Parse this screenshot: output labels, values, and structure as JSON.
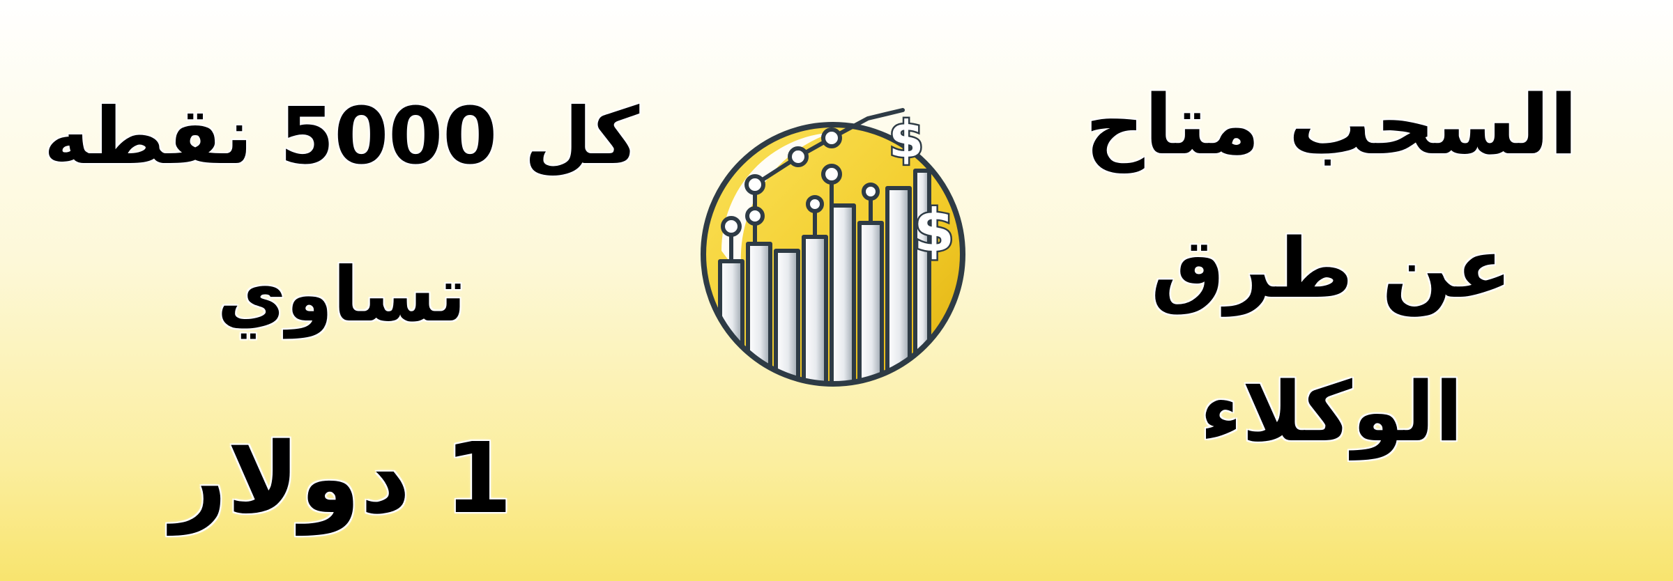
{
  "banner": {
    "right_lines": [
      "السحب متاح",
      "عن طرق",
      "الوكلاء"
    ],
    "left_lines": [
      "كل 5000 نقطه",
      "تساوي",
      "1 دولار"
    ]
  },
  "emblem": {
    "icon": "coin-chart-dollar-icon",
    "coin_color": "#f2cc2a",
    "outline_color": "#2e3b45"
  },
  "colors": {
    "text": "#000000",
    "background_top": "#ffffff",
    "background_bottom": "#f8e46e"
  }
}
